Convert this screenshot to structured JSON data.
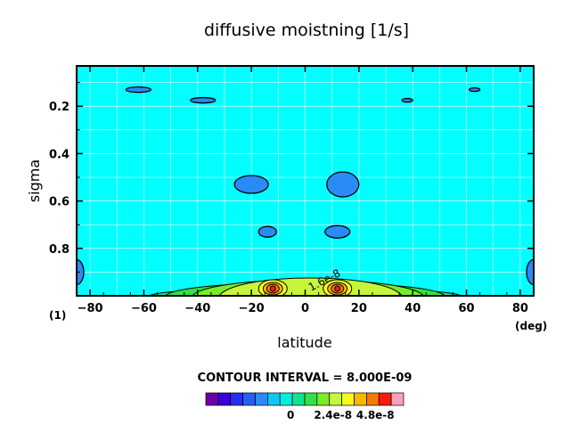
{
  "chart_data": {
    "type": "heatmap",
    "title": "diffusive moistning [1/s]",
    "xlabel": "latitude",
    "ylabel": "sigma",
    "x_unit": "(deg)",
    "y_unit": "(1)",
    "xlim": [
      -85,
      85
    ],
    "ylim": [
      1.0,
      0.03
    ],
    "y_inverted": true,
    "x_ticks": [
      -80,
      -60,
      -40,
      -20,
      0,
      20,
      40,
      60,
      80
    ],
    "x_tick_labels": [
      "−80",
      "−60",
      "−40",
      "−20",
      "0",
      "20",
      "40",
      "60",
      "80"
    ],
    "y_ticks": [
      0.2,
      0.4,
      0.6,
      0.8
    ],
    "y_tick_labels": [
      "0.2",
      "0.4",
      "0.6",
      "0.8"
    ],
    "grid": true,
    "contour_interval_text": "CONTOUR INTERVAL = 8.000E-09",
    "contour_label": "1.6e-8",
    "colorbar": {
      "min": -4.8e-08,
      "max": 6.4e-08,
      "step": 8e-09,
      "tick_values": [
        0,
        2.4e-08,
        4.8e-08
      ],
      "tick_labels": [
        "0",
        "2.4e-8",
        "4.8e-8"
      ],
      "colors": [
        "#6a00a8",
        "#3b00d6",
        "#2330f0",
        "#2c5cf5",
        "#2a8bf8",
        "#12c6f2",
        "#00eedd",
        "#14e098",
        "#32e048",
        "#78ec2a",
        "#c6f53a",
        "#f8f822",
        "#f8b800",
        "#f87800",
        "#f81a10",
        "#f8a2b8"
      ]
    },
    "features": [
      {
        "kind": "negative-blob",
        "lat": -62,
        "sigma": 0.13,
        "level": -8e-09
      },
      {
        "kind": "negative-blob",
        "lat": -38,
        "sigma": 0.175,
        "level": -8e-09
      },
      {
        "kind": "negative-blob",
        "lat": 38,
        "sigma": 0.175,
        "level": -8e-09
      },
      {
        "kind": "negative-blob",
        "lat": 63,
        "sigma": 0.13,
        "level": -8e-09
      },
      {
        "kind": "negative-blob",
        "lat": -20,
        "sigma": 0.53,
        "level": -8e-09
      },
      {
        "kind": "negative-blob",
        "lat": 14,
        "sigma": 0.53,
        "level": -8e-09
      },
      {
        "kind": "negative-blob",
        "lat": -14,
        "sigma": 0.73,
        "level": -8e-09
      },
      {
        "kind": "negative-blob",
        "lat": 12,
        "sigma": 0.73,
        "level": -8e-09
      },
      {
        "kind": "negative-blob",
        "lat": -85,
        "sigma": 0.9,
        "level": -8e-09
      },
      {
        "kind": "negative-blob",
        "lat": 85,
        "sigma": 0.9,
        "level": -8e-09
      },
      {
        "kind": "positive-max",
        "lat": -12,
        "sigma": 0.97,
        "level": 5.6e-08
      },
      {
        "kind": "positive-max",
        "lat": 12,
        "sigma": 0.97,
        "level": 5.6e-08
      }
    ]
  },
  "colors": {
    "background_field": "#00ffff",
    "grid": "#ffffff"
  }
}
